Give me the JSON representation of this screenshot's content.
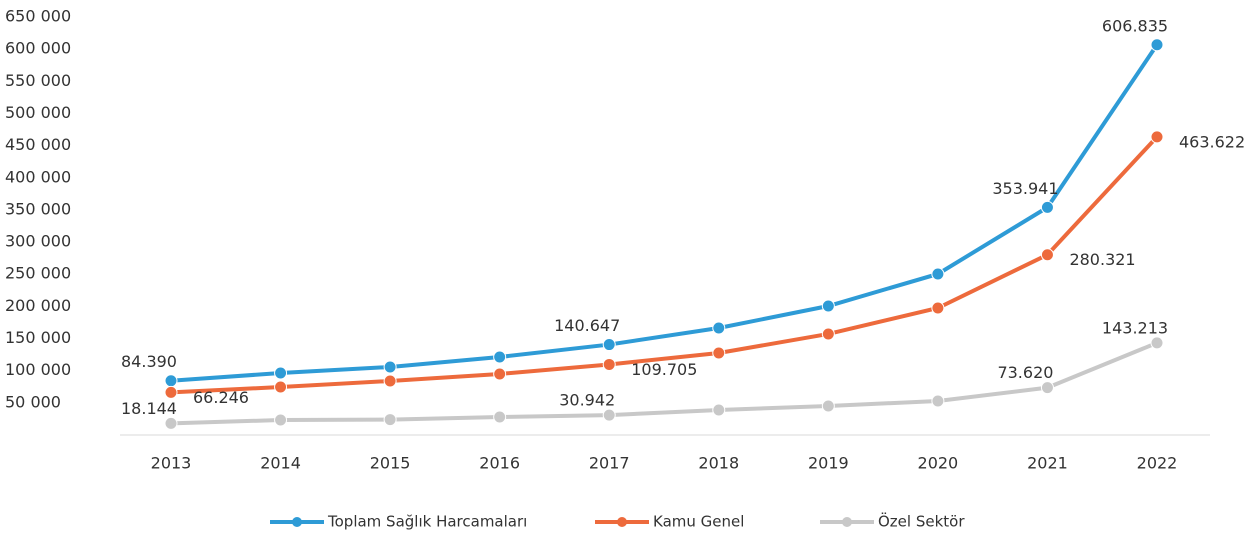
{
  "chart_data": {
    "type": "line",
    "categories": [
      "2013",
      "2014",
      "2015",
      "2016",
      "2017",
      "2018",
      "2019",
      "2020",
      "2021",
      "2022"
    ],
    "series": [
      {
        "name": "Toplam Sağlık Harcamaları",
        "color": "#2e9bd6",
        "values": [
          84390,
          96400,
          105800,
          121300,
          140647,
          166400,
          200600,
          250400,
          353941,
          606835
        ],
        "value_labels": [
          "84.390",
          null,
          null,
          null,
          "140.647",
          null,
          null,
          null,
          "353.941",
          "606.835"
        ]
      },
      {
        "name": "Kamu Genel",
        "color": "#ed6a3c",
        "values": [
          66246,
          74600,
          84000,
          94900,
          109705,
          127500,
          157100,
          197500,
          280321,
          463622
        ],
        "value_labels": [
          "66.246",
          null,
          null,
          null,
          "109.705",
          null,
          null,
          null,
          "280.321",
          "463.622"
        ]
      },
      {
        "name": "Özel Sektör",
        "color": "#c8c8c8",
        "values": [
          18144,
          23300,
          24000,
          28000,
          30942,
          38900,
          45100,
          52900,
          73620,
          143213
        ],
        "value_labels": [
          "18.144",
          null,
          null,
          null,
          "30.942",
          null,
          null,
          null,
          "73.620",
          "143.213"
        ]
      }
    ],
    "ylim": [
      0,
      650000
    ],
    "yticks": [
      {
        "value": 50000,
        "label": "50 000"
      },
      {
        "value": 100000,
        "label": "100 000"
      },
      {
        "value": 150000,
        "label": "150 000"
      },
      {
        "value": 200000,
        "label": "200 000"
      },
      {
        "value": 250000,
        "label": "250 000"
      },
      {
        "value": 300000,
        "label": "300 000"
      },
      {
        "value": 350000,
        "label": "350 000"
      },
      {
        "value": 400000,
        "label": "400 000"
      },
      {
        "value": 450000,
        "label": "450 000"
      },
      {
        "value": 500000,
        "label": "500 000"
      },
      {
        "value": 550000,
        "label": "550 000"
      },
      {
        "value": 600000,
        "label": "600 000"
      },
      {
        "value": 650000,
        "label": "650 000"
      }
    ],
    "grid": false,
    "legend": "bottom"
  }
}
